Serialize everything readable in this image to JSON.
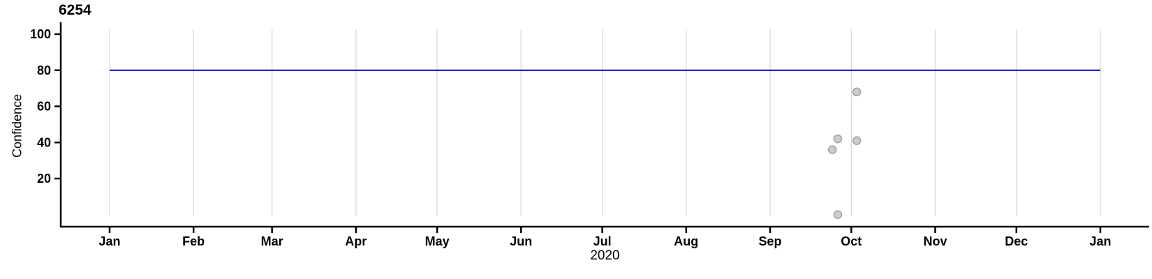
{
  "chart_data": {
    "type": "scatter",
    "title": "6254",
    "ylabel": "Confidence",
    "xlabel": "2020",
    "x_tick_labels": [
      "Jan",
      "Feb",
      "Mar",
      "Apr",
      "May",
      "Jun",
      "Jul",
      "Aug",
      "Sep",
      "Oct",
      "Nov",
      "Dec",
      "Jan"
    ],
    "y_ticks": [
      20,
      40,
      60,
      80,
      100
    ],
    "ylim": [
      0,
      100
    ],
    "x_range": [
      "2020-01-01",
      "2021-01-01"
    ],
    "grid": "vertical month gridlines only",
    "legend": "none",
    "reference_line": {
      "value": 80,
      "color": "#0000CC"
    },
    "points": [
      {
        "date": "2020-09-24",
        "value": 36
      },
      {
        "date": "2020-09-26",
        "value": 42
      },
      {
        "date": "2020-09-26",
        "value": 0
      },
      {
        "date": "2020-10-03",
        "value": 68
      },
      {
        "date": "2020-10-03",
        "value": 41
      }
    ],
    "point_style": {
      "fill": "#CCCCCC",
      "stroke": "#A0A0A0",
      "radius": 5.5
    },
    "colors": {
      "axis": "#000000",
      "gridline": "#D9D9D9",
      "text": "#000000"
    }
  }
}
